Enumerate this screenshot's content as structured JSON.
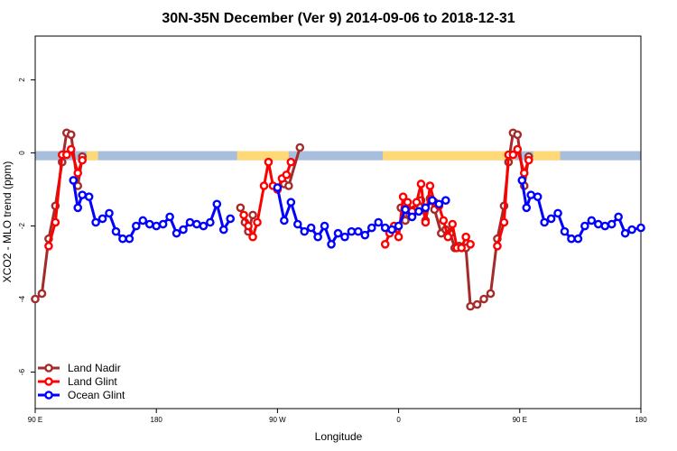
{
  "chart_data": {
    "type": "line",
    "title": "30N-35N December (Ver 9)   2014-09-06 to 2018-12-31",
    "xlabel": "Longitude",
    "ylabel": "XCO2 - MLO trend (ppm)",
    "xlim": [
      -90,
      180
    ],
    "ylim": [
      -7,
      3.2
    ],
    "x_ticks": [
      {
        "value": -90,
        "label": "90 E"
      },
      {
        "value": -36,
        "label": "180"
      },
      {
        "value": 18,
        "label": "90 W"
      },
      {
        "value": 72,
        "label": "0"
      },
      {
        "value": 126,
        "label": "90 E"
      },
      {
        "value": 180,
        "label": "180"
      }
    ],
    "y_ticks": [
      {
        "value": 2,
        "label": "2"
      },
      {
        "value": 0,
        "label": "0"
      },
      {
        "value": -2,
        "label": "-2"
      },
      {
        "value": -4,
        "label": "-4"
      },
      {
        "value": -6,
        "label": "-6"
      }
    ],
    "grid": false,
    "legend_position": "bottom-left",
    "surface_band": {
      "y_top": 0.05,
      "y_bottom": -0.2,
      "ocean_color": "#a8bedc",
      "land_color": "#ffd978",
      "land_segments": [
        [
          -67,
          -62
        ],
        [
          0,
          23
        ],
        [
          65,
          124
        ],
        [
          132,
          144
        ]
      ]
    },
    "series": [
      {
        "name": "Land Nadir",
        "color": "#a52a2a",
        "points": [
          [
            -90,
            -4.0
          ],
          [
            -87,
            -3.85
          ],
          [
            -84,
            -2.35
          ],
          [
            -81,
            -1.45
          ],
          [
            -78,
            -0.25
          ],
          [
            -76,
            0.55
          ],
          [
            -74,
            0.5
          ],
          [
            -71,
            -0.9
          ],
          [
            -69,
            -0.1
          ],
          [
            1.5,
            -1.5
          ],
          [
            3.5,
            -1.9
          ],
          [
            5,
            -2.15
          ],
          [
            7,
            -1.7
          ],
          [
            21,
            -0.85
          ],
          [
            23,
            -0.9
          ],
          [
            28,
            0.15
          ],
          [
            73,
            -1.5
          ],
          [
            75,
            -1.85
          ],
          [
            77,
            -1.7
          ],
          [
            79,
            -1.55
          ],
          [
            82,
            -1.3
          ],
          [
            84,
            -1.85
          ],
          [
            86,
            -1.25
          ],
          [
            88,
            -1.55
          ],
          [
            91,
            -2.2
          ],
          [
            93,
            -2.1
          ],
          [
            95,
            -2.2
          ],
          [
            97,
            -2.6
          ],
          [
            99,
            -2.55
          ],
          [
            102,
            -2.6
          ],
          [
            104,
            -4.2
          ],
          [
            107,
            -4.15
          ],
          [
            110,
            -4.0
          ],
          [
            113,
            -3.85
          ],
          [
            116,
            -2.35
          ],
          [
            119,
            -1.45
          ],
          [
            121,
            -0.25
          ],
          [
            123,
            0.55
          ],
          [
            125,
            0.5
          ],
          [
            128,
            -0.9
          ],
          [
            130,
            -0.1
          ]
        ]
      },
      {
        "name": "Land Glint",
        "color": "#ff0000",
        "points": [
          [
            -84,
            -2.55
          ],
          [
            -81,
            -1.9
          ],
          [
            -78,
            -0.05
          ],
          [
            -76,
            -0.05
          ],
          [
            -74,
            0.1
          ],
          [
            -71,
            -0.55
          ],
          [
            -69,
            -0.2
          ],
          [
            3,
            -1.7
          ],
          [
            5,
            -2.0
          ],
          [
            7,
            -2.3
          ],
          [
            9,
            -1.9
          ],
          [
            12,
            -0.9
          ],
          [
            14,
            -0.25
          ],
          [
            16,
            -0.9
          ],
          [
            18,
            -1.0
          ],
          [
            20,
            -0.7
          ],
          [
            22,
            -0.6
          ],
          [
            24,
            -0.25
          ],
          [
            66,
            -2.5
          ],
          [
            68,
            -2.2
          ],
          [
            70,
            -2.0
          ],
          [
            72,
            -2.3
          ],
          [
            74,
            -1.2
          ],
          [
            76,
            -1.35
          ],
          [
            78,
            -1.6
          ],
          [
            80,
            -1.35
          ],
          [
            82,
            -0.85
          ],
          [
            84,
            -1.9
          ],
          [
            86,
            -0.9
          ],
          [
            88,
            -1.35
          ],
          [
            90,
            -1.45
          ],
          [
            92,
            -1.85
          ],
          [
            94,
            -2.3
          ],
          [
            96,
            -1.95
          ],
          [
            98,
            -2.6
          ],
          [
            100,
            -2.6
          ],
          [
            102,
            -2.3
          ],
          [
            104,
            -2.5
          ],
          [
            116,
            -2.55
          ],
          [
            119,
            -1.9
          ],
          [
            121,
            -0.05
          ],
          [
            123,
            -0.05
          ],
          [
            125,
            0.1
          ],
          [
            128,
            -0.55
          ],
          [
            130,
            -0.2
          ]
        ]
      },
      {
        "name": "Ocean Glint",
        "color": "#0000ff",
        "points": [
          [
            -73,
            -0.75
          ],
          [
            -71,
            -1.5
          ],
          [
            -69,
            -1.15
          ],
          [
            -66,
            -1.2
          ],
          [
            -63,
            -1.9
          ],
          [
            -60,
            -1.8
          ],
          [
            -57,
            -1.65
          ],
          [
            -54,
            -2.15
          ],
          [
            -51,
            -2.35
          ],
          [
            -48,
            -2.35
          ],
          [
            -45,
            -2.0
          ],
          [
            -42,
            -1.85
          ],
          [
            -39,
            -1.95
          ],
          [
            -36,
            -2.0
          ],
          [
            -33,
            -1.95
          ],
          [
            -30,
            -1.75
          ],
          [
            -27,
            -2.2
          ],
          [
            -24,
            -2.1
          ],
          [
            -21,
            -1.9
          ],
          [
            -18,
            -1.95
          ],
          [
            -15,
            -2.0
          ],
          [
            -12,
            -1.9
          ],
          [
            -9,
            -1.4
          ],
          [
            -6,
            -2.1
          ],
          [
            -3,
            -1.8
          ],
          [
            18,
            -0.95
          ],
          [
            21,
            -1.85
          ],
          [
            24,
            -1.35
          ],
          [
            27,
            -1.95
          ],
          [
            30,
            -2.15
          ],
          [
            33,
            -2.05
          ],
          [
            36,
            -2.3
          ],
          [
            39,
            -2.0
          ],
          [
            42,
            -2.5
          ],
          [
            45,
            -2.2
          ],
          [
            48,
            -2.3
          ],
          [
            51,
            -2.15
          ],
          [
            54,
            -2.15
          ],
          [
            57,
            -2.25
          ],
          [
            60,
            -2.05
          ],
          [
            63,
            -1.9
          ],
          [
            66,
            -2.05
          ],
          [
            69,
            -2.1
          ],
          [
            72,
            -2.0
          ],
          [
            75,
            -1.55
          ],
          [
            78,
            -1.75
          ],
          [
            81,
            -1.6
          ],
          [
            84,
            -1.5
          ],
          [
            87,
            -1.3
          ],
          [
            90,
            -1.4
          ],
          [
            93,
            -1.3
          ],
          [
            127,
            -0.75
          ],
          [
            129,
            -1.5
          ],
          [
            131,
            -1.15
          ],
          [
            134,
            -1.2
          ],
          [
            137,
            -1.9
          ],
          [
            140,
            -1.8
          ],
          [
            143,
            -1.65
          ],
          [
            146,
            -2.15
          ],
          [
            149,
            -2.35
          ],
          [
            152,
            -2.35
          ],
          [
            155,
            -2.0
          ],
          [
            158,
            -1.85
          ],
          [
            161,
            -1.95
          ],
          [
            164,
            -2.0
          ],
          [
            167,
            -1.95
          ],
          [
            170,
            -1.75
          ],
          [
            173,
            -2.2
          ],
          [
            176,
            -2.1
          ],
          [
            180,
            -2.05
          ]
        ]
      }
    ]
  }
}
